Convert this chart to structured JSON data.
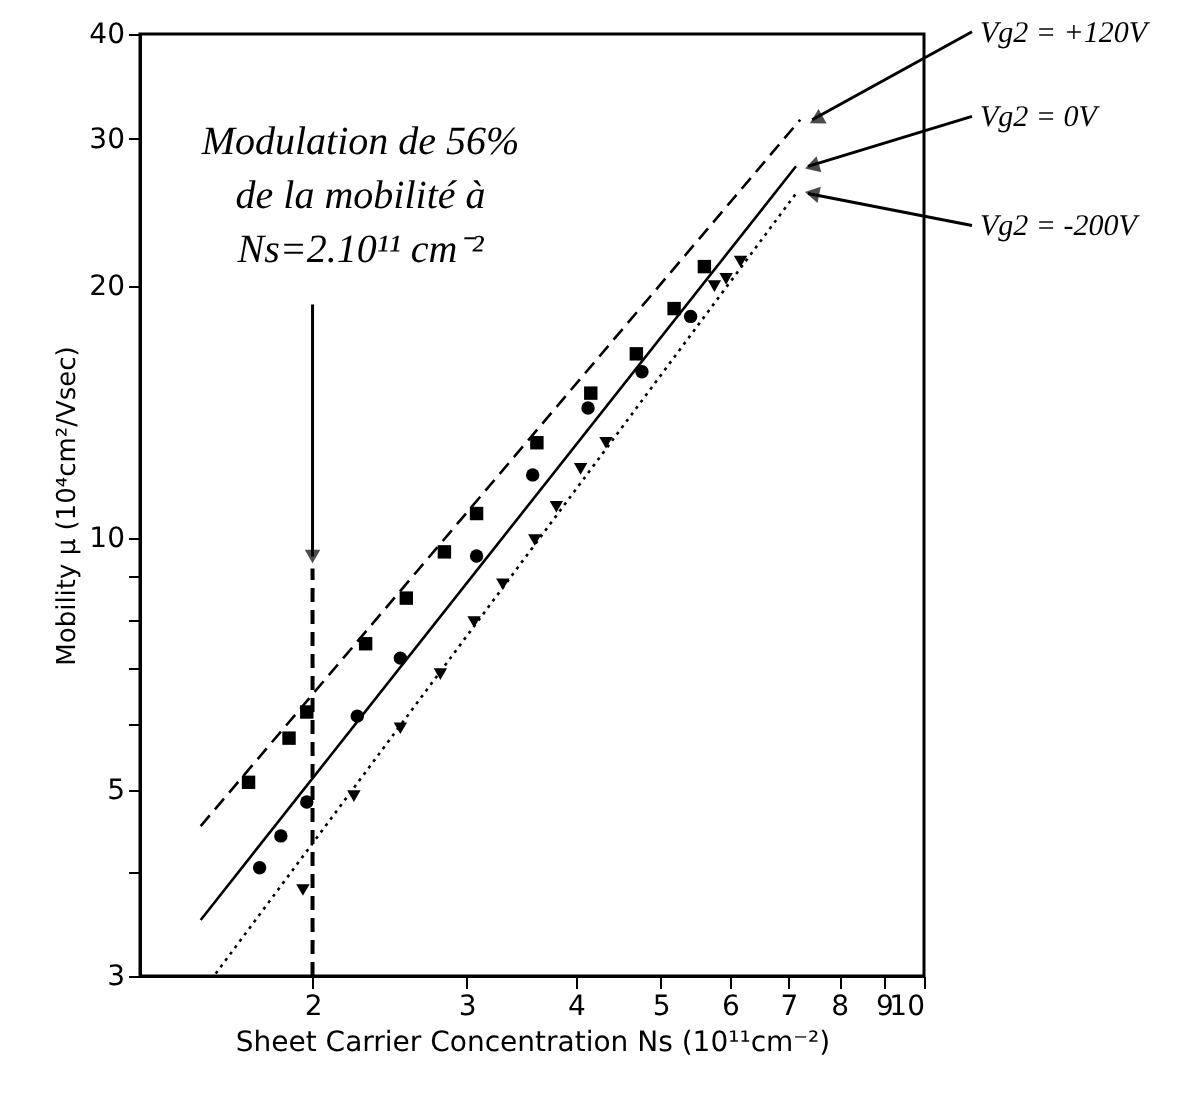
{
  "chart_data": {
    "type": "scatter",
    "xlabel": "Sheet Carrier Concentration Ns (10¹¹cm⁻²)",
    "ylabel": "Mobility  μ (10⁴cm²/Vsec)",
    "log": "xy",
    "grid": false,
    "xlim": [
      1.27,
      10
    ],
    "ylim": [
      3,
      40
    ],
    "xticks": [
      2,
      3,
      4,
      5,
      6,
      7,
      8,
      9,
      10
    ],
    "yticks": [
      3,
      {
        "value": 4,
        "label": null
      },
      5,
      {
        "value": 6,
        "label": null
      },
      {
        "value": 7,
        "label": null
      },
      {
        "value": 8,
        "label": null
      },
      {
        "value": 9,
        "label": null
      },
      10,
      20,
      30,
      40
    ],
    "series": [
      {
        "type": "line",
        "name": "Vg2 = +120V",
        "color": "#000000",
        "line_style": "dashed",
        "x": [
          1.49,
          7.22
        ],
        "values": [
          4.53,
          31.6
        ]
      },
      {
        "type": "line",
        "name": "Vg2 = 0V",
        "color": "#000000",
        "line_style": "solid",
        "x": [
          1.49,
          7.14
        ],
        "values": [
          3.5,
          27.8
        ]
      },
      {
        "type": "line",
        "name": "Vg2 = -200V",
        "color": "#000000",
        "line_style": "dotted",
        "x": [
          1.55,
          7.14
        ],
        "values": [
          3.02,
          25.8
        ]
      },
      {
        "marker": "square",
        "color": "#000000",
        "x": [
          1.69,
          1.88,
          1.97,
          2.3,
          2.56,
          2.83,
          3.08,
          3.61,
          4.16,
          4.69,
          5.18,
          5.61
        ],
        "values": [
          5.11,
          5.77,
          6.2,
          7.48,
          8.48,
          9.63,
          10.7,
          13.0,
          14.9,
          16.6,
          18.8,
          21.1
        ]
      },
      {
        "marker": "circle",
        "color": "#000000",
        "x": [
          1.74,
          1.84,
          1.97,
          2.25,
          2.52,
          3.08,
          3.57,
          4.13,
          4.76,
          5.41
        ],
        "values": [
          4.04,
          4.41,
          4.84,
          6.13,
          7.19,
          9.52,
          11.9,
          14.3,
          15.8,
          18.4
        ]
      },
      {
        "marker": "triangle",
        "color": "#000000",
        "x": [
          1.95,
          2.23,
          2.52,
          2.8,
          3.06,
          3.3,
          3.59,
          3.8,
          4.05,
          4.33,
          5.76,
          5.94,
          6.17
        ],
        "values": [
          3.8,
          4.92,
          5.93,
          6.88,
          7.94,
          8.81,
          9.95,
          10.9,
          12.1,
          13.0,
          20.0,
          20.4,
          21.4
        ]
      }
    ],
    "ref_lines": [
      {
        "axis": "x",
        "value": 2,
        "line_style": "dashed",
        "color": "#000000"
      }
    ],
    "annotations": [
      {
        "text": "Modulation de 56%\nde la mobilité à\nNs=2.10¹¹ cm⁻²",
        "x": 2,
        "y": 9.2
      }
    ]
  }
}
